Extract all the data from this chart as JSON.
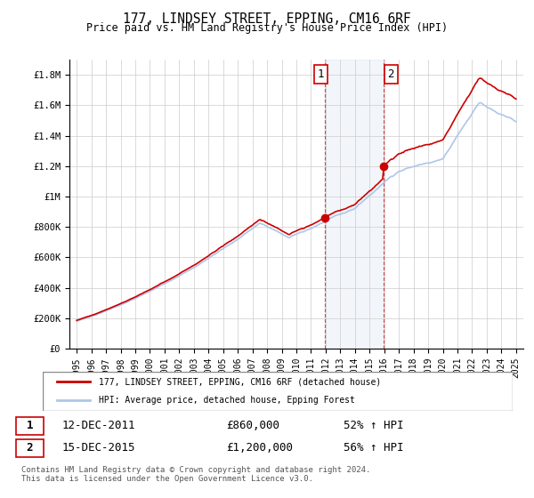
{
  "title": "177, LINDSEY STREET, EPPING, CM16 6RF",
  "subtitle": "Price paid vs. HM Land Registry's House Price Index (HPI)",
  "ylabel_ticks": [
    "£0",
    "£200K",
    "£400K",
    "£600K",
    "£800K",
    "£1M",
    "£1.2M",
    "£1.4M",
    "£1.6M",
    "£1.8M"
  ],
  "ytick_values": [
    0,
    200000,
    400000,
    600000,
    800000,
    1000000,
    1200000,
    1400000,
    1600000,
    1800000
  ],
  "ylim": [
    0,
    1900000
  ],
  "xlim_start": 1994.5,
  "xlim_end": 2025.5,
  "xtick_years": [
    1995,
    1996,
    1997,
    1998,
    1999,
    2000,
    2001,
    2002,
    2003,
    2004,
    2005,
    2006,
    2007,
    2008,
    2009,
    2010,
    2011,
    2012,
    2013,
    2014,
    2015,
    2016,
    2017,
    2018,
    2019,
    2020,
    2021,
    2022,
    2023,
    2024,
    2025
  ],
  "hpi_color": "#aec6e8",
  "price_color": "#cc0000",
  "sale1_x": 2011.95,
  "sale1_y": 860000,
  "sale2_x": 2015.96,
  "sale2_y": 1200000,
  "vline1_x": 2011.95,
  "vline2_x": 2015.96,
  "annotation1_label": "1",
  "annotation2_label": "2",
  "legend_line1": "177, LINDSEY STREET, EPPING, CM16 6RF (detached house)",
  "legend_line2": "HPI: Average price, detached house, Epping Forest",
  "table_row1_num": "1",
  "table_row1_date": "12-DEC-2011",
  "table_row1_price": "£860,000",
  "table_row1_hpi": "52% ↑ HPI",
  "table_row2_num": "2",
  "table_row2_date": "15-DEC-2015",
  "table_row2_price": "£1,200,000",
  "table_row2_hpi": "56% ↑ HPI",
  "footnote": "Contains HM Land Registry data © Crown copyright and database right 2024.\nThis data is licensed under the Open Government Licence v3.0.",
  "background_color": "#ffffff",
  "plot_bg_color": "#ffffff",
  "grid_color": "#cccccc"
}
